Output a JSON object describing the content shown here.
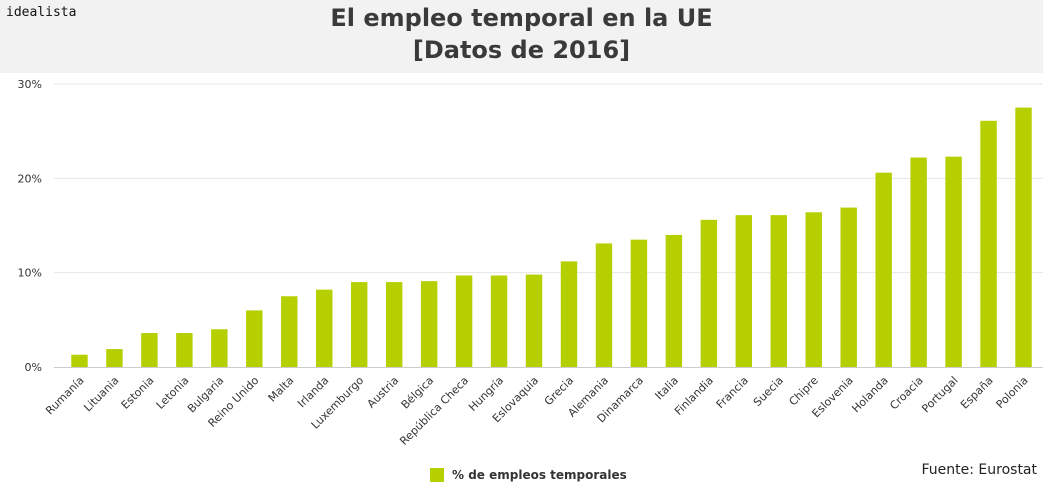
{
  "header": {
    "brand": "idealista",
    "title_line1": "El empleo temporal en la UE",
    "title_line2": "[Datos de 2016]"
  },
  "source": "Fuente: Eurostat",
  "colors": {
    "bar": "#b5cf00",
    "header_bg": "#f2f2f2",
    "grid": "#e6e6e6"
  },
  "chart_data": {
    "type": "bar",
    "title": "El empleo temporal en la UE [Datos de 2016]",
    "xlabel": "",
    "ylabel": "",
    "ylim": [
      0,
      30
    ],
    "yticks": [
      "0%",
      "10%",
      "20%",
      "30%"
    ],
    "yticks_values": [
      0,
      10,
      20,
      30
    ],
    "grid": true,
    "legend_position": "bottom",
    "categories": [
      "Rumanía",
      "Lituania",
      "Estonia",
      "Letonia",
      "Bulgaria",
      "Reino Unido",
      "Malta",
      "Irlanda",
      "Luxemburgo",
      "Austria",
      "Bélgica",
      "República Checa",
      "Hungría",
      "Eslovaquia",
      "Grecia",
      "Alemania",
      "Dinamarca",
      "Italia",
      "Finlandia",
      "Francia",
      "Suecia",
      "Chipre",
      "Eslovenia",
      "Holanda",
      "Croacia",
      "Portugal",
      "España",
      "Polonia"
    ],
    "series": [
      {
        "name": "% de empleos temporales",
        "values": [
          1.3,
          1.9,
          3.6,
          3.6,
          4.0,
          6.0,
          7.5,
          8.2,
          9.0,
          9.0,
          9.1,
          9.7,
          9.7,
          9.8,
          11.2,
          13.1,
          13.5,
          14.0,
          15.6,
          16.1,
          16.1,
          16.4,
          16.9,
          20.6,
          22.2,
          22.3,
          26.1,
          27.5
        ]
      }
    ]
  }
}
